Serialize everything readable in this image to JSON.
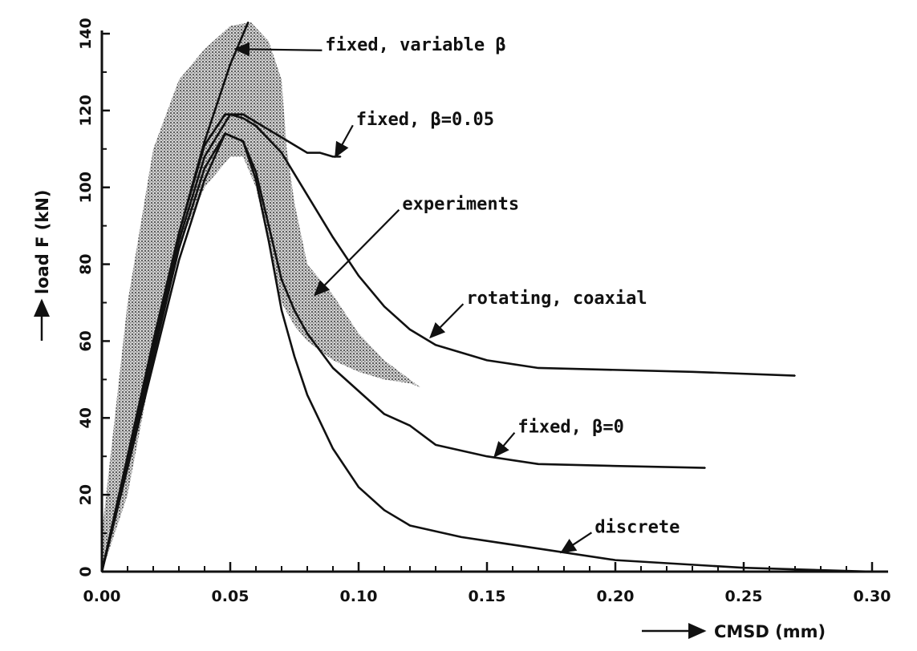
{
  "chart_data": {
    "type": "line",
    "xlabel": "CMSD (mm)",
    "ylabel": "load F (kN)",
    "xlim": [
      0,
      0.3
    ],
    "ylim": [
      0,
      140
    ],
    "x_ticks": [
      0.0,
      0.05,
      0.1,
      0.15,
      0.2,
      0.25,
      0.3
    ],
    "x_tick_labels": [
      "0.00",
      "0.05",
      "0.10",
      "0.15",
      "0.20",
      "0.25",
      "0.30"
    ],
    "y_ticks": [
      0,
      20,
      40,
      60,
      80,
      100,
      120,
      140
    ],
    "y_tick_labels": [
      "0",
      "20",
      "40",
      "60",
      "80",
      "100",
      "120",
      "140"
    ],
    "grid": false,
    "series": [
      {
        "name": "fixed, variable β",
        "x": [
          0.0,
          0.01,
          0.02,
          0.03,
          0.04,
          0.05,
          0.057
        ],
        "y": [
          0,
          30,
          60,
          88,
          112,
          132,
          143
        ]
      },
      {
        "name": "fixed, β=0.05",
        "x": [
          0.0,
          0.01,
          0.02,
          0.03,
          0.04,
          0.048,
          0.055,
          0.06,
          0.065,
          0.07,
          0.075,
          0.08,
          0.085,
          0.09,
          0.093
        ],
        "y": [
          0,
          29,
          58,
          88,
          111,
          119,
          119,
          117,
          115,
          113,
          111,
          109,
          109,
          108,
          108
        ]
      },
      {
        "name": "rotating, coaxial",
        "x": [
          0.0,
          0.01,
          0.02,
          0.03,
          0.04,
          0.05,
          0.055,
          0.06,
          0.07,
          0.08,
          0.09,
          0.1,
          0.11,
          0.12,
          0.13,
          0.15,
          0.17,
          0.2,
          0.23,
          0.27
        ],
        "y": [
          0,
          29,
          57,
          86,
          108,
          119,
          118,
          116,
          109,
          98,
          87,
          77,
          69,
          63,
          59,
          55,
          53,
          52.5,
          52,
          51
        ]
      },
      {
        "name": "fixed, β=0",
        "x": [
          0.0,
          0.01,
          0.02,
          0.03,
          0.04,
          0.048,
          0.055,
          0.06,
          0.065,
          0.07,
          0.075,
          0.08,
          0.09,
          0.1,
          0.11,
          0.12,
          0.13,
          0.15,
          0.17,
          0.2,
          0.235
        ],
        "y": [
          0,
          28,
          56,
          84,
          105,
          114,
          112,
          104,
          90,
          76,
          68,
          62,
          53,
          47,
          41,
          38,
          33,
          30,
          28,
          27.5,
          27
        ]
      },
      {
        "name": "discrete",
        "x": [
          0.0,
          0.01,
          0.02,
          0.03,
          0.04,
          0.048,
          0.055,
          0.06,
          0.065,
          0.07,
          0.075,
          0.08,
          0.09,
          0.1,
          0.11,
          0.12,
          0.14,
          0.16,
          0.2,
          0.25,
          0.3
        ],
        "y": [
          0,
          27,
          54,
          81,
          102,
          114,
          112,
          102,
          86,
          68,
          56,
          46,
          32,
          22,
          16,
          12,
          9,
          7,
          3,
          1,
          0
        ]
      }
    ],
    "experiments_band": {
      "name": "experiments",
      "upper": {
        "x": [
          0.0,
          0.01,
          0.02,
          0.03,
          0.04,
          0.05,
          0.058,
          0.065,
          0.07,
          0.072,
          0.075,
          0.08,
          0.09,
          0.1,
          0.11,
          0.12,
          0.124
        ],
        "y": [
          10,
          70,
          110,
          128,
          136,
          142,
          143,
          138,
          128,
          110,
          96,
          80,
          72,
          62,
          55,
          50,
          48
        ]
      },
      "lower": {
        "x": [
          0.0,
          0.01,
          0.02,
          0.03,
          0.04,
          0.05,
          0.055,
          0.06,
          0.065,
          0.07,
          0.075,
          0.08,
          0.09,
          0.1,
          0.11,
          0.12,
          0.124
        ],
        "y": [
          0,
          20,
          55,
          85,
          100,
          108,
          108,
          100,
          85,
          70,
          64,
          60,
          55,
          52,
          50,
          49,
          48
        ]
      }
    },
    "annotations": [
      {
        "text": "fixed, variable β",
        "target": [
          0.052,
          136
        ],
        "anchor": [
          0.087,
          136.5
        ]
      },
      {
        "text": "fixed, β=0.05",
        "target": [
          0.091,
          108
        ],
        "anchor": [
          0.099,
          117
        ]
      },
      {
        "text": "experiments",
        "target": [
          0.083,
          72
        ],
        "anchor": [
          0.117,
          95
        ]
      },
      {
        "text": "rotating, coaxial",
        "target": [
          0.128,
          61
        ],
        "anchor": [
          0.142,
          70.5
        ]
      },
      {
        "text": "fixed, β=0",
        "target": [
          0.153,
          30
        ],
        "anchor": [
          0.162,
          37
        ]
      },
      {
        "text": "discrete",
        "target": [
          0.179,
          5
        ],
        "anchor": [
          0.192,
          11
        ]
      }
    ]
  }
}
